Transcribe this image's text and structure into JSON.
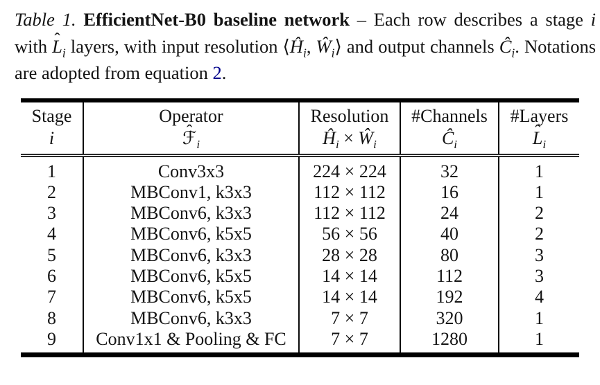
{
  "glyphs": {
    "hat": "ˆ"
  },
  "colors": {
    "text": "#141414",
    "link": "#00008B",
    "rule": "#000000"
  },
  "caption": {
    "label": "Table 1.",
    "title": " EfficientNet-B0 baseline network",
    "seg_dash": " – Each row describes a stage ",
    "var_i": "i",
    "seg_with": " with ",
    "var_L_base": "L",
    "sub_i": "i",
    "seg_layers": " layers, with input resolution ",
    "langle": "⟨",
    "var_H": "Ĥ",
    "seg_comma": ", ",
    "var_W": "Ŵ",
    "rangle": "⟩",
    "seg_channels": " and output channels ",
    "var_C": "Ĉ",
    "seg_notations": ". Notations are adopted from equation ",
    "eq_ref": "2",
    "seg_period": "."
  },
  "table": {
    "columns": [
      {
        "label": "Stage",
        "symbol": [
          {
            "text": "i",
            "italic": true
          }
        ]
      },
      {
        "label": "Operator",
        "symbol": [
          {
            "text": "ℱ",
            "hat": true
          },
          {
            "text": "i",
            "italic": true,
            "sub": true
          }
        ]
      },
      {
        "label": "Resolution",
        "symbol": [
          {
            "text": "Ĥ",
            "italic": true
          },
          {
            "text": "i",
            "italic": true,
            "sub": true
          },
          {
            "text": " × "
          },
          {
            "text": "Ŵ",
            "italic": true
          },
          {
            "text": "i",
            "italic": true,
            "sub": true
          }
        ]
      },
      {
        "label": "#Channels",
        "symbol": [
          {
            "text": "Ĉ",
            "italic": true
          },
          {
            "text": "i",
            "italic": true,
            "sub": true
          }
        ]
      },
      {
        "label": "#Layers",
        "symbol": [
          {
            "text": "L",
            "italic": true,
            "hat": true
          },
          {
            "text": "i",
            "italic": true,
            "sub": true
          }
        ]
      }
    ],
    "rows": [
      [
        "1",
        "Conv3x3",
        "224 × 224",
        "32",
        "1"
      ],
      [
        "2",
        "MBConv1, k3x3",
        "112 × 112",
        "16",
        "1"
      ],
      [
        "3",
        "MBConv6, k3x3",
        "112 × 112",
        "24",
        "2"
      ],
      [
        "4",
        "MBConv6, k5x5",
        "56 × 56",
        "40",
        "2"
      ],
      [
        "5",
        "MBConv6, k3x3",
        "28 × 28",
        "80",
        "3"
      ],
      [
        "6",
        "MBConv6, k5x5",
        "14 × 14",
        "112",
        "3"
      ],
      [
        "7",
        "MBConv6, k5x5",
        "14 × 14",
        "192",
        "4"
      ],
      [
        "8",
        "MBConv6, k3x3",
        "7 × 7",
        "320",
        "1"
      ],
      [
        "9",
        "Conv1x1 & Pooling & FC",
        "7 × 7",
        "1280",
        "1"
      ]
    ]
  }
}
